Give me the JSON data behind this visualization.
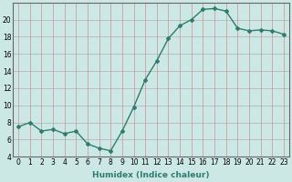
{
  "x": [
    0,
    1,
    2,
    3,
    4,
    5,
    6,
    7,
    8,
    9,
    10,
    11,
    12,
    13,
    14,
    15,
    16,
    17,
    18,
    19,
    20,
    21,
    22,
    23
  ],
  "y": [
    7.5,
    8.0,
    7.0,
    7.2,
    6.7,
    7.0,
    5.5,
    5.0,
    4.7,
    7.0,
    9.8,
    13.0,
    15.2,
    17.8,
    19.3,
    20.0,
    21.2,
    21.3,
    21.0,
    19.0,
    18.7,
    18.8,
    18.7,
    18.3
  ],
  "line_color": "#2e7d6e",
  "marker": "D",
  "marker_size": 2.0,
  "bg_color": "#cce8e4",
  "grid_color_h": "#b0b0b0",
  "grid_color_v": "#d09090",
  "xlabel": "Humidex (Indice chaleur)",
  "ylim": [
    4,
    22
  ],
  "xlim": [
    -0.5,
    23.5
  ],
  "yticks": [
    4,
    6,
    8,
    10,
    12,
    14,
    16,
    18,
    20
  ],
  "xticks": [
    0,
    1,
    2,
    3,
    4,
    5,
    6,
    7,
    8,
    9,
    10,
    11,
    12,
    13,
    14,
    15,
    16,
    17,
    18,
    19,
    20,
    21,
    22,
    23
  ],
  "xtick_labels": [
    "0",
    "1",
    "2",
    "3",
    "4",
    "5",
    "6",
    "7",
    "8",
    "9",
    "10",
    "11",
    "12",
    "13",
    "14",
    "15",
    "16",
    "17",
    "18",
    "19",
    "20",
    "21",
    "22",
    "23"
  ],
  "label_fontsize": 6.5,
  "tick_fontsize": 5.5,
  "line_width": 1.0
}
